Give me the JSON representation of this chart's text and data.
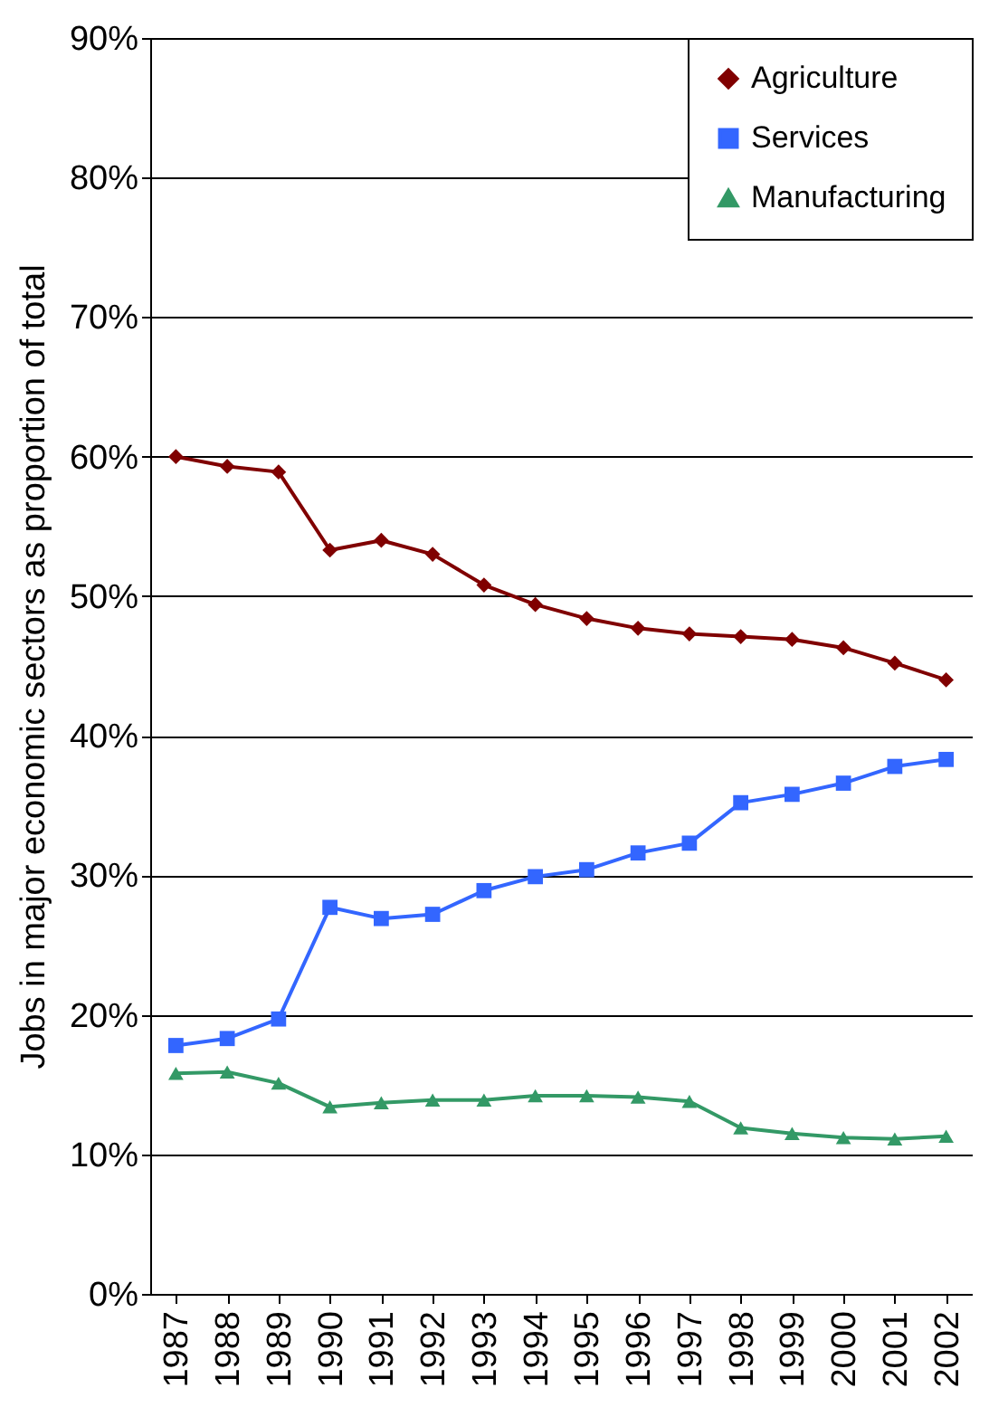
{
  "chart_data": {
    "type": "line",
    "ylabel": "Jobs in major economic sectors as proportion of total",
    "categories": [
      "1987",
      "1988",
      "1989",
      "1990",
      "1991",
      "1992",
      "1993",
      "1994",
      "1995",
      "1996",
      "1997",
      "1998",
      "1999",
      "2000",
      "2001",
      "2002"
    ],
    "series": [
      {
        "name": "Agriculture",
        "color": "#800000",
        "marker": "diamond",
        "values": [
          60.0,
          59.3,
          58.9,
          53.3,
          54.0,
          53.0,
          50.8,
          49.4,
          48.4,
          47.7,
          47.3,
          47.1,
          46.9,
          46.3,
          45.2,
          44.0
        ]
      },
      {
        "name": "Services",
        "color": "#3366ff",
        "marker": "square",
        "values": [
          17.8,
          18.3,
          19.7,
          27.7,
          26.9,
          27.2,
          28.9,
          29.9,
          30.4,
          31.6,
          32.3,
          35.2,
          35.8,
          36.6,
          37.8,
          38.3
        ]
      },
      {
        "name": "Manufacturing",
        "color": "#339966",
        "marker": "triangle",
        "values": [
          15.8,
          15.9,
          15.1,
          13.4,
          13.7,
          13.9,
          13.9,
          14.2,
          14.2,
          14.1,
          13.8,
          11.9,
          11.5,
          11.2,
          11.1,
          11.3
        ]
      }
    ],
    "ylim": [
      0,
      90
    ],
    "yticks": [
      {
        "value": 0,
        "label": "0%"
      },
      {
        "value": 10,
        "label": "10%"
      },
      {
        "value": 20,
        "label": "20%"
      },
      {
        "value": 30,
        "label": "30%"
      },
      {
        "value": 40,
        "label": "40%"
      },
      {
        "value": 50,
        "label": "50%"
      },
      {
        "value": 60,
        "label": "60%"
      },
      {
        "value": 70,
        "label": "70%"
      },
      {
        "value": 80,
        "label": "80%"
      },
      {
        "value": 90,
        "label": "90%"
      }
    ],
    "grid": "y",
    "legend": "top right",
    "line_style": "solid"
  }
}
